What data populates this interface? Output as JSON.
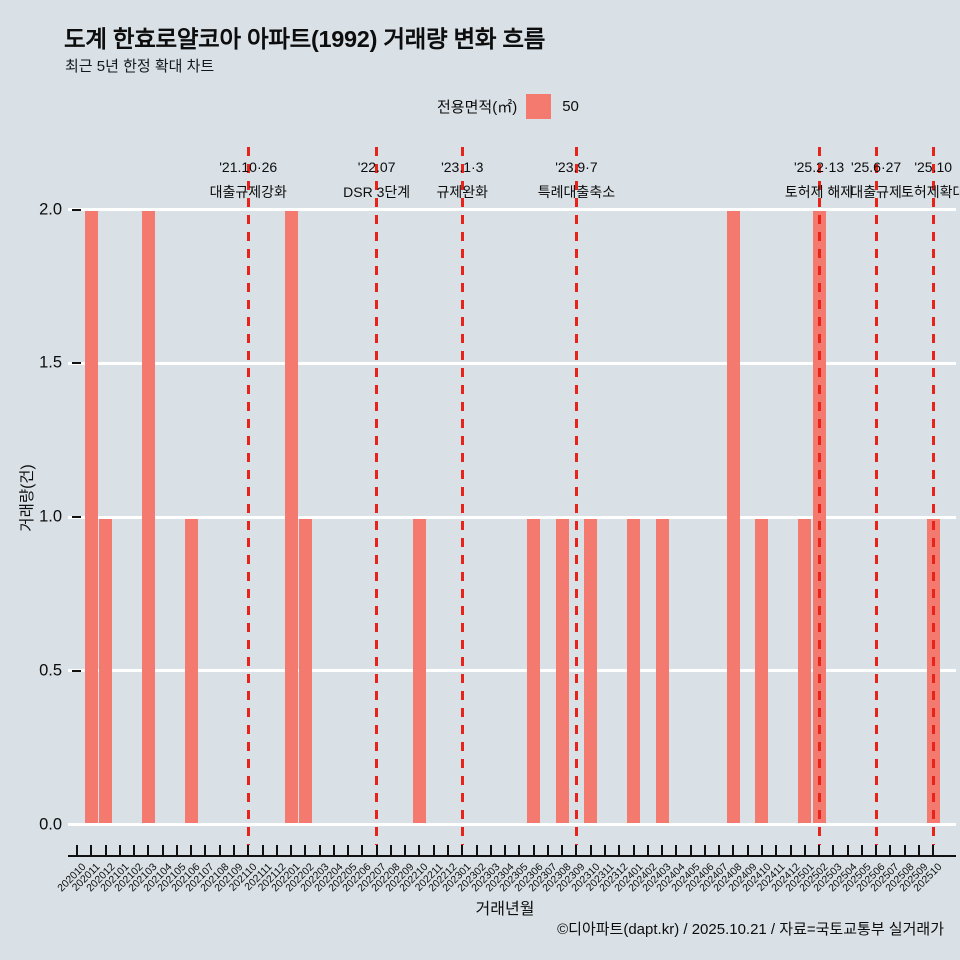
{
  "header": {
    "title": "도계 한효로얄코아 아파트(1992) 거래량 변화 흐름",
    "subtitle": "최근 5년 한정 확대 차트"
  },
  "legend": {
    "label": "전용면적(㎡)",
    "value": "50",
    "swatch_color": "#f4796e"
  },
  "footer": {
    "credit": "©디아파트(dapt.kr) / 2025.10.21 / 자료=국토교통부 실거래가"
  },
  "chart_data": {
    "type": "bar",
    "title": "도계 한효로얄코아 아파트(1992) 거래량 변화 흐름",
    "xlabel": "거래년월",
    "ylabel": "거래량(건)",
    "ylim": [
      0,
      2
    ],
    "yticks": [
      2.0,
      1.5,
      1.0,
      0.5,
      0.0
    ],
    "ytick_labels": [
      "2.0",
      "1.5",
      "1.0",
      "0.5",
      "0.0"
    ],
    "grid": true,
    "legend_position": "top",
    "series_name": "50",
    "bar_color": "#f4796e",
    "event_line_color": "#e8231a",
    "gridline_color": "#ffffff",
    "background_color": "#d9e1e7",
    "categories": [
      "202010",
      "202011",
      "202012",
      "202101",
      "202102",
      "202103",
      "202104",
      "202105",
      "202106",
      "202107",
      "202108",
      "202109",
      "202110",
      "202111",
      "202112",
      "202201",
      "202202",
      "202203",
      "202204",
      "202205",
      "202206",
      "202207",
      "202208",
      "202209",
      "202210",
      "202211",
      "202212",
      "202301",
      "202302",
      "202303",
      "202304",
      "202305",
      "202306",
      "202307",
      "202308",
      "202309",
      "202310",
      "202311",
      "202312",
      "202401",
      "202402",
      "202403",
      "202404",
      "202405",
      "202406",
      "202407",
      "202408",
      "202409",
      "202410",
      "202411",
      "202412",
      "202501",
      "202502",
      "202503",
      "202504",
      "202505",
      "202506",
      "202507",
      "202508",
      "202509",
      "202510"
    ],
    "values": [
      0,
      2,
      1,
      0,
      0,
      2,
      0,
      0,
      1,
      0,
      0,
      0,
      0,
      0,
      0,
      2,
      1,
      0,
      0,
      0,
      0,
      0,
      0,
      0,
      1,
      0,
      0,
      0,
      0,
      0,
      0,
      0,
      1,
      0,
      1,
      0,
      1,
      0,
      0,
      1,
      0,
      1,
      0,
      0,
      0,
      0,
      2,
      0,
      1,
      0,
      0,
      1,
      2,
      0,
      0,
      0,
      0,
      0,
      0,
      0,
      1
    ],
    "annotations": [
      {
        "month": "202110",
        "date": "'21.10·26",
        "label": "대출규제강화"
      },
      {
        "month": "202207",
        "date": "'22.07",
        "label": "DSR 3단계"
      },
      {
        "month": "202301",
        "date": "'23.1·3",
        "label": "규제완화"
      },
      {
        "month": "202309",
        "date": "'23.9·7",
        "label": "특례대출축소"
      },
      {
        "month": "202502",
        "date": "'25.2·13",
        "label": "토허제 해제"
      },
      {
        "month": "202506",
        "date": "'25.6·27",
        "label": "대출규제"
      },
      {
        "month": "202510",
        "date": "'25.10",
        "label": "토허제확대"
      }
    ]
  }
}
